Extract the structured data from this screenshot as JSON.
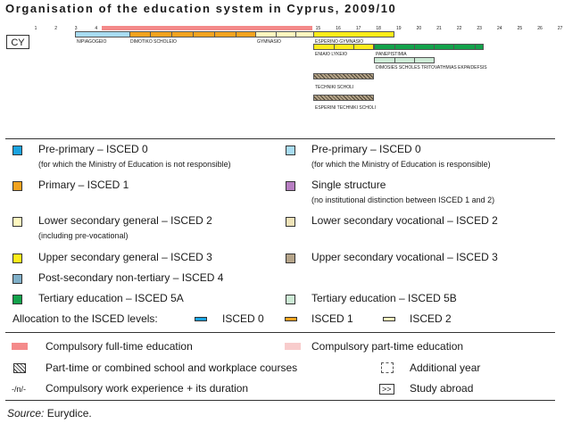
{
  "title": "Organisation of the education system in Cyprus, 2009/10",
  "country_code": "CY",
  "age_axis": [
    "1",
    "2",
    "3",
    "4",
    "5",
    "6",
    "7",
    "8",
    "9",
    "10",
    "11",
    "12",
    "13",
    "14",
    "15",
    "16",
    "17",
    "18",
    "19",
    "20",
    "21",
    "22",
    "23",
    "24",
    "25",
    "26",
    "27"
  ],
  "chart_data": {
    "type": "timeline",
    "x_unit": "age",
    "programmes": [
      {
        "label": "NIPIAGOGEIO",
        "start_age": 3,
        "end_age": 5.5,
        "isced": "Pre-primary – ISCED 0"
      },
      {
        "label": "DIMOTIKO SCHOLEIO",
        "start_age": 5.5,
        "end_age": 11.5,
        "isced": "Primary – ISCED 1"
      },
      {
        "label": "GYMNASIO",
        "start_age": 11.5,
        "end_age": 15,
        "isced": "Lower secondary general – ISCED 2"
      },
      {
        "label": "ESPERINO GYMNASIO",
        "start_age": 15,
        "end_age": 18,
        "isced": "Lower secondary general – ISCED 2"
      },
      {
        "label": "ENIAIO LYKEIO",
        "start_age": 15,
        "end_age": 18,
        "isced": "Upper secondary general – ISCED 3"
      },
      {
        "label": "PANEPISTIMIA",
        "start_age": 18,
        "end_age": 23,
        "isced": "Tertiary education – ISCED 5A"
      },
      {
        "label": "DIMOSIES SCHOLES TRITOVATHMIAS EKPAIDEFSIS",
        "start_age": 18,
        "end_age": 21,
        "isced": "Tertiary education – ISCED 5B"
      },
      {
        "label": "TECHNIKI SCHOLI",
        "start_age": 15,
        "end_age": 18,
        "isced": "Upper secondary vocational – ISCED 3"
      },
      {
        "label": "ESPERINI TECHNIKI SCHOLI",
        "start_age": 15,
        "end_age": 18,
        "isced": "Upper secondary vocational – ISCED 3"
      }
    ],
    "compulsory_full_time": [
      6,
      15
    ]
  },
  "legend": {
    "pre_primary_a": {
      "text": "Pre-primary – ISCED 0",
      "sub": "(for which the Ministry of Education is not responsible)",
      "color": "#1aa3e0"
    },
    "pre_primary_b": {
      "text": "Pre-primary – ISCED 0",
      "sub": "(for which the Ministry of Education is responsible)",
      "color": "#a8dcf2"
    },
    "primary": {
      "text": "Primary – ISCED 1",
      "color": "#f2a31f"
    },
    "single": {
      "text": "Single structure",
      "sub": "(no institutional distinction between ISCED 1 and 2)",
      "color": "#b77ec2"
    },
    "lower_gen": {
      "text": "Lower secondary general – ISCED 2",
      "sub": "(including pre-vocational)",
      "color": "#fff8bf"
    },
    "lower_voc": {
      "text": "Lower secondary vocational – ISCED 2",
      "color": "#efe3b8"
    },
    "upper_gen": {
      "text": "Upper secondary general – ISCED 3",
      "color": "#ffec1a"
    },
    "upper_voc": {
      "text": "Upper secondary vocational – ISCED 3",
      "color": "#b5a489"
    },
    "post_sec": {
      "text": "Post-secondary non-tertiary – ISCED 4",
      "color": "#7fafc8"
    },
    "tertiary_a": {
      "text": "Tertiary education – ISCED 5A",
      "color": "#13a24b"
    },
    "tertiary_b": {
      "text": "Tertiary education – ISCED 5B",
      "color": "#cdebd6"
    },
    "allocation": "Allocation to the ISCED levels:",
    "isced0": "ISCED 0",
    "isced1": "ISCED 1",
    "isced2": "ISCED 2",
    "compulsory_full": "Compulsory full-time education",
    "compulsory_part": "Compulsory part-time education",
    "part_time": "Part-time or combined school and workplace courses",
    "additional_year": "Additional year",
    "work_symbol": "-/n/-",
    "work_experience": "Compulsory work experience + its duration",
    "study_symbol": ">>",
    "study_abroad": "Study abroad"
  },
  "source": {
    "label": "Source:",
    "text": " Eurydice."
  }
}
